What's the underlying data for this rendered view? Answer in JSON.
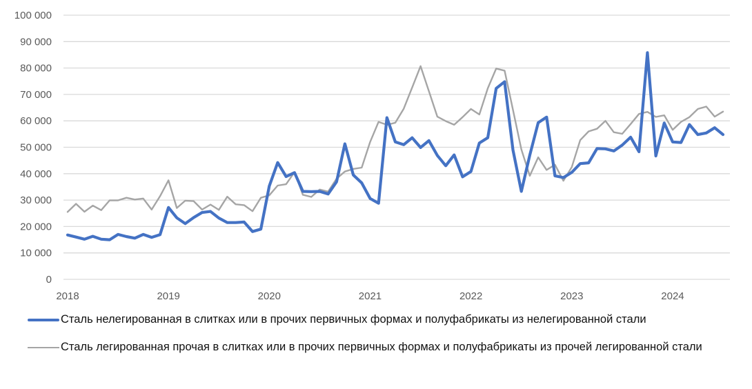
{
  "chart_data": {
    "type": "line",
    "title": "",
    "xlabel": "",
    "ylabel": "",
    "ylim": [
      0,
      100000
    ],
    "y_ticks": [
      "0",
      "10 000",
      "20 000",
      "30 000",
      "40 000",
      "50 000",
      "60 000",
      "70 000",
      "80 000",
      "90 000",
      "100 000"
    ],
    "x_tick_labels": [
      "2018",
      "2019",
      "2020",
      "2021",
      "2022",
      "2023",
      "2024"
    ],
    "x_frequency": "monthly",
    "x_start": "2018-01",
    "grid": "horizontal",
    "legend_position": "bottom",
    "series": [
      {
        "name": "Сталь нелегированная в слитках или в прочих первичных формах и полуфабрикаты из нелегированной стали",
        "color": "#4472C4",
        "values": [
          16800,
          16000,
          15200,
          16300,
          15200,
          15000,
          17000,
          16200,
          15600,
          17000,
          15900,
          16900,
          27200,
          23300,
          21100,
          23400,
          25300,
          25700,
          23200,
          21500,
          21500,
          21700,
          18100,
          19000,
          35300,
          44200,
          38900,
          40400,
          33300,
          33200,
          33300,
          32300,
          36900,
          51300,
          39500,
          36500,
          30600,
          28800,
          61200,
          52000,
          51000,
          53600,
          49900,
          52500,
          46900,
          43000,
          47100,
          38800,
          40800,
          51600,
          53600,
          72300,
          74800,
          49000,
          33300,
          47000,
          59300,
          61400,
          39200,
          38500,
          40500,
          43800,
          44100,
          49500,
          49400,
          48600,
          50800,
          53800,
          48300,
          85800,
          46700,
          59200,
          52000,
          51800,
          58600,
          54800,
          55400,
          57400,
          54800
        ]
      },
      {
        "name": "Сталь легированная прочая в слитках или в прочих первичных формах и полуфабрикаты из прочей легированной стали",
        "color": "#A5A5A5",
        "values": [
          25500,
          28600,
          25600,
          27900,
          26200,
          29900,
          29900,
          30900,
          30200,
          30600,
          26400,
          31500,
          37500,
          27000,
          29800,
          29600,
          26400,
          28300,
          26300,
          31300,
          28400,
          28100,
          25800,
          30900,
          31800,
          35500,
          36000,
          40600,
          32000,
          31200,
          34000,
          33200,
          38100,
          40800,
          41800,
          42300,
          52000,
          59600,
          58500,
          59300,
          64600,
          72600,
          80700,
          71200,
          61600,
          59900,
          58500,
          61400,
          64500,
          62400,
          72300,
          79800,
          79000,
          64200,
          49200,
          39200,
          46200,
          41400,
          43400,
          37300,
          42500,
          52700,
          56000,
          57000,
          60000,
          55700,
          55100,
          58800,
          62600,
          63400,
          61500,
          62100,
          56600,
          59600,
          61400,
          64500,
          65400,
          61600,
          63500
        ]
      }
    ]
  },
  "legend": {
    "items": [
      {
        "label": "Сталь нелегированная в слитках или в прочих первичных формах и полуфабрикаты из нелегированной стали"
      },
      {
        "label": "Сталь легированная прочая в слитках или в прочих первичных формах и полуфабрикаты из прочей легированной стали"
      }
    ]
  }
}
